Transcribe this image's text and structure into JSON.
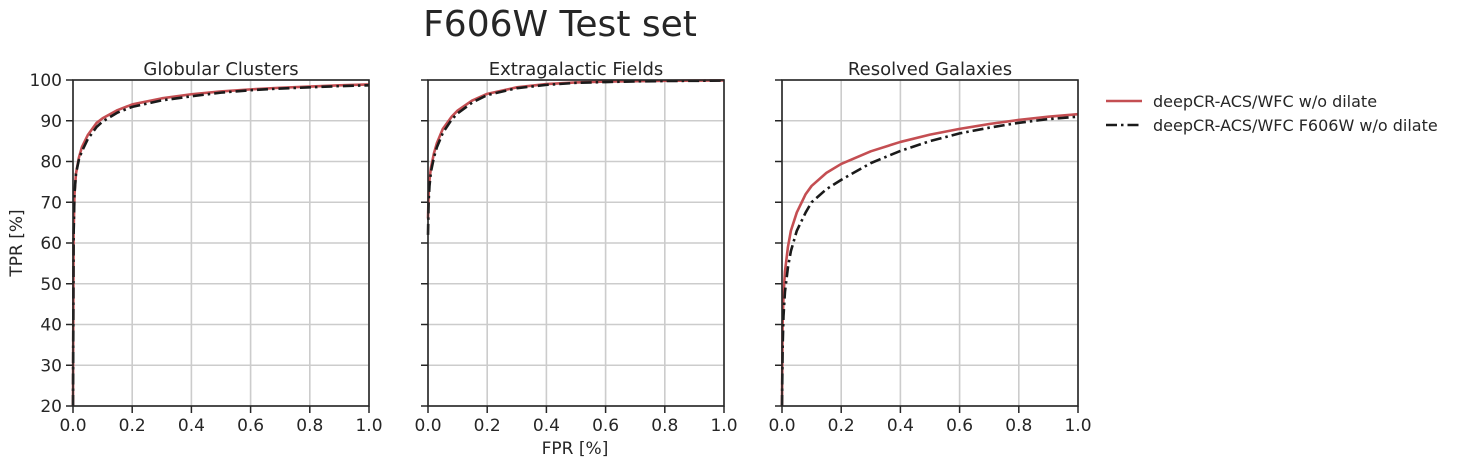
{
  "figure": {
    "title": "F606W Test set",
    "xlabel": "FPR [%]",
    "ylabel": "TPR [%]"
  },
  "legend": {
    "placement": "outside-right",
    "entries": [
      {
        "label": "deepCR-ACS/WFC w/o dilate",
        "color": "#c44e52",
        "style": "solid"
      },
      {
        "label": "deepCR-ACS/WFC F606W w/o dilate",
        "color": "#1a1a1a",
        "style": "dashdot"
      }
    ]
  },
  "chart_data": [
    {
      "type": "line",
      "title": "Globular Clusters",
      "xlim": [
        0,
        1
      ],
      "ylim": [
        20,
        100
      ],
      "xticks": [
        "0.0",
        "0.2",
        "0.4",
        "0.6",
        "0.8",
        "1.0"
      ],
      "yticks": [
        "20",
        "30",
        "40",
        "50",
        "60",
        "70",
        "80",
        "90",
        "100"
      ],
      "grid": true,
      "series": [
        {
          "name": "deepCR-ACS/WFC w/o dilate",
          "color": "#c44e52",
          "style": "solid",
          "x": [
            0,
            0.002,
            0.005,
            0.01,
            0.02,
            0.03,
            0.05,
            0.08,
            0.1,
            0.15,
            0.2,
            0.3,
            0.4,
            0.5,
            0.6,
            0.7,
            0.8,
            0.9,
            1.0
          ],
          "y": [
            20,
            62,
            72,
            77,
            81,
            83.5,
            86.5,
            89.5,
            90.6,
            92.6,
            94,
            95.5,
            96.5,
            97.2,
            97.7,
            98.1,
            98.4,
            98.7,
            98.9
          ]
        },
        {
          "name": "deepCR-ACS/WFC F606W w/o dilate",
          "color": "#1a1a1a",
          "style": "dashdot",
          "x": [
            0,
            0.002,
            0.005,
            0.01,
            0.02,
            0.03,
            0.05,
            0.08,
            0.1,
            0.15,
            0.2,
            0.3,
            0.4,
            0.5,
            0.6,
            0.7,
            0.8,
            0.9,
            1.0
          ],
          "y": [
            20,
            62,
            72,
            77,
            80.5,
            82.5,
            85.5,
            88.5,
            89.8,
            92,
            93.4,
            95,
            96,
            96.9,
            97.5,
            97.9,
            98.2,
            98.5,
            98.7
          ]
        }
      ]
    },
    {
      "type": "line",
      "title": "Extragalactic Fields",
      "xlim": [
        0,
        1
      ],
      "ylim": [
        20,
        100
      ],
      "xticks": [
        "0.0",
        "0.2",
        "0.4",
        "0.6",
        "0.8",
        "1.0"
      ],
      "yticks": [
        "20",
        "30",
        "40",
        "50",
        "60",
        "70",
        "80",
        "90",
        "100"
      ],
      "grid": true,
      "series": [
        {
          "name": "deepCR-ACS/WFC w/o dilate",
          "color": "#c44e52",
          "style": "solid",
          "x": [
            0,
            0.002,
            0.005,
            0.01,
            0.02,
            0.03,
            0.05,
            0.08,
            0.1,
            0.15,
            0.2,
            0.3,
            0.4,
            0.5,
            0.6,
            0.7,
            0.8,
            0.9,
            1.0
          ],
          "y": [
            66,
            72,
            75.5,
            78.5,
            82,
            84.5,
            88,
            91,
            92.5,
            95,
            96.6,
            98.2,
            99,
            99.4,
            99.6,
            99.7,
            99.8,
            99.85,
            99.9
          ]
        },
        {
          "name": "deepCR-ACS/WFC F606W w/o dilate",
          "color": "#1a1a1a",
          "style": "dashdot",
          "x": [
            0,
            0.002,
            0.005,
            0.01,
            0.02,
            0.03,
            0.05,
            0.08,
            0.1,
            0.15,
            0.2,
            0.3,
            0.4,
            0.5,
            0.6,
            0.7,
            0.8,
            0.9,
            1.0
          ],
          "y": [
            62,
            70,
            74,
            77.5,
            81,
            83.5,
            87,
            90.3,
            91.8,
            94.5,
            96.3,
            98,
            98.8,
            99.3,
            99.5,
            99.65,
            99.75,
            99.8,
            99.85
          ]
        }
      ]
    },
    {
      "type": "line",
      "title": "Resolved Galaxies",
      "xlim": [
        0,
        1
      ],
      "ylim": [
        20,
        100
      ],
      "xticks": [
        "0.0",
        "0.2",
        "0.4",
        "0.6",
        "0.8",
        "1.0"
      ],
      "yticks": [
        "20",
        "30",
        "40",
        "50",
        "60",
        "70",
        "80",
        "90",
        "100"
      ],
      "grid": true,
      "series": [
        {
          "name": "deepCR-ACS/WFC w/o dilate",
          "color": "#c44e52",
          "style": "solid",
          "x": [
            0,
            0.002,
            0.005,
            0.01,
            0.02,
            0.03,
            0.05,
            0.08,
            0.1,
            0.15,
            0.2,
            0.3,
            0.4,
            0.5,
            0.6,
            0.7,
            0.8,
            0.9,
            1.0
          ],
          "y": [
            20,
            40,
            47,
            53,
            59,
            63,
            67.5,
            72,
            74,
            77.2,
            79.4,
            82.5,
            84.8,
            86.6,
            88,
            89.2,
            90.2,
            91,
            91.6
          ]
        },
        {
          "name": "deepCR-ACS/WFC F606W w/o dilate",
          "color": "#1a1a1a",
          "style": "dashdot",
          "x": [
            0,
            0.002,
            0.005,
            0.01,
            0.02,
            0.03,
            0.05,
            0.08,
            0.1,
            0.15,
            0.2,
            0.3,
            0.4,
            0.5,
            0.6,
            0.7,
            0.8,
            0.9,
            1.0
          ],
          "y": [
            20,
            34,
            42,
            48,
            54,
            58,
            63,
            67.5,
            70,
            73.2,
            75.5,
            79.6,
            82.6,
            85,
            86.9,
            88.3,
            89.5,
            90.4,
            91
          ]
        }
      ]
    }
  ]
}
